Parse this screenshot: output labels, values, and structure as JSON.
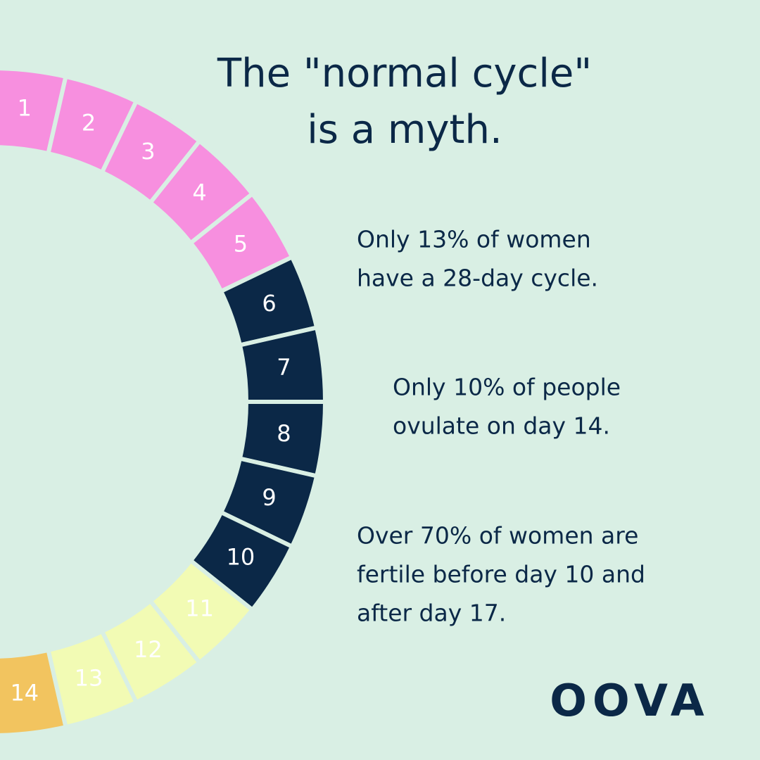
{
  "title": [
    "The \"normal cycle\"",
    "is a myth."
  ],
  "facts": [
    [
      "Only 13% of women",
      "have a 28-day cycle."
    ],
    [
      "Only 10% of people",
      "ovulate on day 14."
    ],
    [
      "Over 70% of women are",
      "fertile before day 10 and",
      "after day 17."
    ]
  ],
  "cycle": {
    "segments": [
      {
        "label": "1",
        "color": "#f78fdf"
      },
      {
        "label": "2",
        "color": "#f78fdf"
      },
      {
        "label": "3",
        "color": "#f78fdf"
      },
      {
        "label": "4",
        "color": "#f78fdf"
      },
      {
        "label": "5",
        "color": "#f78fdf"
      },
      {
        "label": "6",
        "color": "#0b2847"
      },
      {
        "label": "7",
        "color": "#0b2847"
      },
      {
        "label": "8",
        "color": "#0b2847"
      },
      {
        "label": "9",
        "color": "#0b2847"
      },
      {
        "label": "10",
        "color": "#0b2847"
      },
      {
        "label": "11",
        "color": "#f2fbb4"
      },
      {
        "label": "12",
        "color": "#f2fbb4"
      },
      {
        "label": "13",
        "color": "#f2fbb4"
      },
      {
        "label": "14",
        "color": "#f2c45f"
      }
    ]
  },
  "logo": "OOVA"
}
